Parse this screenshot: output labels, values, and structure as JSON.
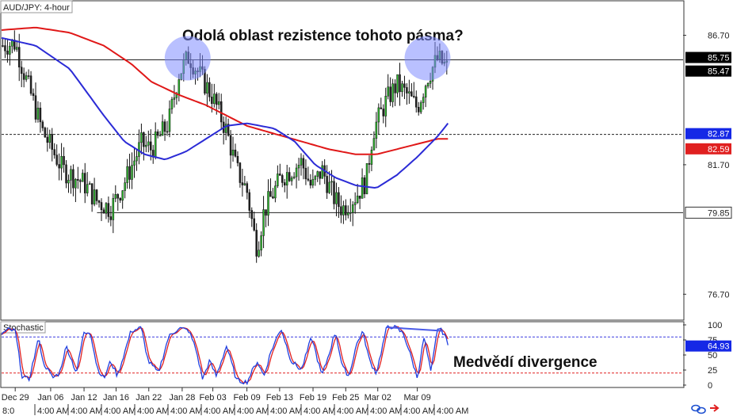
{
  "chart_title": "AUD/JPY: 4-hour",
  "annotation_top": "Odolá oblast rezistence tohoto pásma?",
  "annotation_bottom": "Medvědí divergence",
  "indicator_title": "Stochastic",
  "colors": {
    "candle_up": "#2db92d",
    "candle_down": "#222222",
    "ma_fast": "#2b2bd6",
    "ma_slow": "#e01818",
    "stoch_k": "#1f3fe0",
    "stoch_d": "#e02020",
    "stoch_hi_line": "#3a3ae0",
    "stoch_lo_line": "#e02020",
    "circle": "#7f8cff",
    "divergence": "#4a5be8",
    "label_box": "#000000",
    "label_box_blue": "#1528e6",
    "label_box_red": "#e02020",
    "frame": "#333333"
  },
  "chart_data": {
    "type": "candlestick",
    "title": "AUD/JPY: 4-hour",
    "price_axis": {
      "ticks": [
        {
          "value": 86.7,
          "label": "86.70"
        },
        {
          "value": 81.7,
          "label": "81.70"
        },
        {
          "value": 76.7,
          "label": "76.70"
        }
      ],
      "ylim": [
        75.7,
        88.0
      ]
    },
    "price_labels": [
      {
        "value": 85.75,
        "label": "85.75",
        "style": "black"
      },
      {
        "value": 85.47,
        "label": "85.47",
        "style": "black"
      },
      {
        "value": 82.87,
        "label": "82.87",
        "style": "blue"
      },
      {
        "value": 82.59,
        "label": "82.59",
        "style": "red"
      },
      {
        "value": 79.85,
        "label": "79.85",
        "style": "plain"
      }
    ],
    "levels": [
      {
        "value": 85.75,
        "style": "solid",
        "from": 0.0,
        "to": 1.0
      },
      {
        "value": 82.87,
        "style": "dashed",
        "from": 0.0,
        "to": 1.0
      },
      {
        "value": 79.85,
        "style": "solid",
        "from": 0.14,
        "to": 1.0
      }
    ],
    "x_ticks": [
      {
        "pos": 0.02,
        "label": "Dec 29"
      },
      {
        "pos": 0.072,
        "label": "Jan 06"
      },
      {
        "pos": 0.121,
        "label": "Jan 12"
      },
      {
        "pos": 0.168,
        "label": "Jan 16"
      },
      {
        "pos": 0.216,
        "label": "Jan 22"
      },
      {
        "pos": 0.265,
        "label": "Jan 28"
      },
      {
        "pos": 0.31,
        "label": "Feb 03"
      },
      {
        "pos": 0.36,
        "label": "Feb 09"
      },
      {
        "pos": 0.408,
        "label": "Feb 13"
      },
      {
        "pos": 0.457,
        "label": "Feb 19"
      },
      {
        "pos": 0.505,
        "label": "Feb 25"
      },
      {
        "pos": 0.552,
        "label": "Mar 02"
      },
      {
        "pos": 0.61,
        "label": "Mar 09"
      }
    ],
    "time_ticks_row2": [
      "8:0",
      "4:00 AM",
      "4:00 AM",
      "4:00 AM",
      "4:00 AM",
      "4:00 AM",
      "4:00 AM",
      "4:00 AM",
      "4:00 AM",
      "4:00 AM",
      "4:00 AM",
      "4:00 AM",
      "4:00 AM",
      "4:00 AM"
    ],
    "path_anchors": [
      [
        0.0,
        86.3
      ],
      [
        0.02,
        86.4
      ],
      [
        0.03,
        85.5
      ],
      [
        0.06,
        83.0
      ],
      [
        0.09,
        81.5
      ],
      [
        0.12,
        81.0
      ],
      [
        0.14,
        80.3
      ],
      [
        0.16,
        80.0
      ],
      [
        0.18,
        81.0
      ],
      [
        0.205,
        82.5
      ],
      [
        0.22,
        82.3
      ],
      [
        0.245,
        83.3
      ],
      [
        0.26,
        85.2
      ],
      [
        0.275,
        85.9
      ],
      [
        0.29,
        85.2
      ],
      [
        0.31,
        84.3
      ],
      [
        0.33,
        83.0
      ],
      [
        0.345,
        81.5
      ],
      [
        0.36,
        80.7
      ],
      [
        0.37,
        79.1
      ],
      [
        0.375,
        78.5
      ],
      [
        0.385,
        79.9
      ],
      [
        0.41,
        81.2
      ],
      [
        0.44,
        81.8
      ],
      [
        0.455,
        80.8
      ],
      [
        0.47,
        81.5
      ],
      [
        0.49,
        80.3
      ],
      [
        0.5,
        80.0
      ],
      [
        0.52,
        80.5
      ],
      [
        0.535,
        81.1
      ],
      [
        0.545,
        83.0
      ],
      [
        0.565,
        84.2
      ],
      [
        0.58,
        84.8
      ],
      [
        0.595,
        84.4
      ],
      [
        0.61,
        83.9
      ],
      [
        0.625,
        85.1
      ],
      [
        0.64,
        85.8
      ],
      [
        0.655,
        85.4
      ]
    ],
    "ma_fast": [
      [
        0.0,
        86.6
      ],
      [
        0.05,
        86.3
      ],
      [
        0.1,
        85.4
      ],
      [
        0.15,
        83.6
      ],
      [
        0.18,
        82.6
      ],
      [
        0.21,
        82.1
      ],
      [
        0.24,
        81.9
      ],
      [
        0.27,
        82.2
      ],
      [
        0.3,
        82.7
      ],
      [
        0.33,
        83.2
      ],
      [
        0.36,
        83.3
      ],
      [
        0.4,
        83.1
      ],
      [
        0.43,
        82.6
      ],
      [
        0.46,
        81.7
      ],
      [
        0.49,
        81.2
      ],
      [
        0.52,
        80.9
      ],
      [
        0.55,
        80.8
      ],
      [
        0.58,
        81.3
      ],
      [
        0.61,
        82.0
      ],
      [
        0.64,
        82.8
      ],
      [
        0.655,
        83.3
      ]
    ],
    "ma_slow": [
      [
        0.0,
        86.9
      ],
      [
        0.05,
        87.0
      ],
      [
        0.1,
        86.8
      ],
      [
        0.15,
        86.3
      ],
      [
        0.19,
        85.6
      ],
      [
        0.22,
        84.9
      ],
      [
        0.26,
        84.4
      ],
      [
        0.3,
        84.0
      ],
      [
        0.33,
        83.6
      ],
      [
        0.36,
        83.2
      ],
      [
        0.4,
        82.9
      ],
      [
        0.44,
        82.6
      ],
      [
        0.48,
        82.3
      ],
      [
        0.52,
        82.1
      ],
      [
        0.55,
        82.1
      ],
      [
        0.58,
        82.3
      ],
      [
        0.61,
        82.5
      ],
      [
        0.64,
        82.7
      ],
      [
        0.655,
        82.7
      ]
    ],
    "stochastic": {
      "title": "Stochastic",
      "ticks": [
        {
          "value": 100,
          "label": "100"
        },
        {
          "value": 75,
          "label": "75"
        },
        {
          "value": 50,
          "label": "50"
        },
        {
          "value": 25,
          "label": "25"
        },
        {
          "value": 0,
          "label": "0"
        }
      ],
      "levels": [
        80,
        20
      ],
      "current": {
        "value": 64.93,
        "label": "64.93"
      },
      "divergence_line": [
        [
          0.565,
          96
        ],
        [
          0.648,
          90
        ]
      ],
      "k_anchors": [
        [
          0.0,
          85
        ],
        [
          0.01,
          92
        ],
        [
          0.02,
          90
        ],
        [
          0.03,
          15
        ],
        [
          0.04,
          8
        ],
        [
          0.055,
          80
        ],
        [
          0.06,
          40
        ],
        [
          0.075,
          12
        ],
        [
          0.085,
          20
        ],
        [
          0.095,
          65
        ],
        [
          0.11,
          20
        ],
        [
          0.12,
          85
        ],
        [
          0.13,
          90
        ],
        [
          0.14,
          30
        ],
        [
          0.15,
          10
        ],
        [
          0.16,
          40
        ],
        [
          0.17,
          15
        ],
        [
          0.19,
          90
        ],
        [
          0.205,
          95
        ],
        [
          0.215,
          40
        ],
        [
          0.23,
          20
        ],
        [
          0.245,
          80
        ],
        [
          0.26,
          95
        ],
        [
          0.275,
          90
        ],
        [
          0.285,
          60
        ],
        [
          0.295,
          10
        ],
        [
          0.305,
          40
        ],
        [
          0.315,
          15
        ],
        [
          0.33,
          65
        ],
        [
          0.345,
          8
        ],
        [
          0.36,
          5
        ],
        [
          0.375,
          40
        ],
        [
          0.385,
          15
        ],
        [
          0.395,
          55
        ],
        [
          0.41,
          95
        ],
        [
          0.425,
          40
        ],
        [
          0.44,
          25
        ],
        [
          0.455,
          80
        ],
        [
          0.47,
          15
        ],
        [
          0.48,
          50
        ],
        [
          0.49,
          90
        ],
        [
          0.5,
          30
        ],
        [
          0.51,
          15
        ],
        [
          0.52,
          65
        ],
        [
          0.53,
          90
        ],
        [
          0.54,
          40
        ],
        [
          0.55,
          20
        ],
        [
          0.565,
          95
        ],
        [
          0.575,
          98
        ],
        [
          0.59,
          85
        ],
        [
          0.6,
          50
        ],
        [
          0.61,
          12
        ],
        [
          0.62,
          80
        ],
        [
          0.63,
          20
        ],
        [
          0.64,
          96
        ],
        [
          0.65,
          85
        ],
        [
          0.655,
          65
        ]
      ]
    }
  }
}
